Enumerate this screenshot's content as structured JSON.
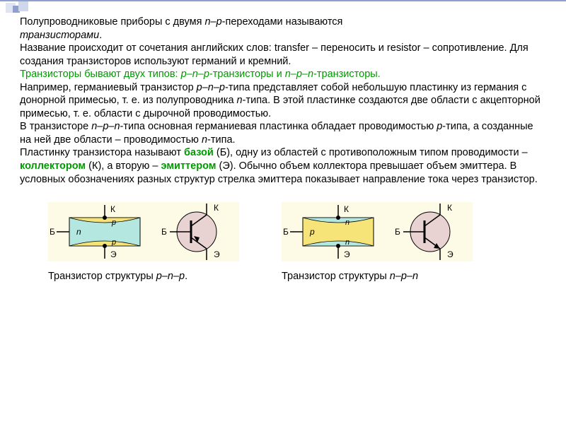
{
  "text": {
    "l1a": "Полупроводниковые приборы с двумя ",
    "l1b": "n–p",
    "l1c": "-переходами называются ",
    "l2a": "транзисторами",
    "l2b": ".",
    "l3": "Название происходит от сочетания английских слов: transfer – переносить и resistor – сопротивление. Для создания транзисторов используют германий и кремний.",
    "l4a": "Транзисторы бывают двух типов: ",
    "l4b": "p–n–p",
    "l4c": "-транзисторы и ",
    "l4d": "n–p–n",
    "l4e": "-транзисторы.",
    "l5a": "Например, германиевый транзистор ",
    "l5b": "p–n–p",
    "l5c": "-типа представляет собой небольшую пластинку из германия с донорной примесью, т. е. из полупроводника ",
    "l5d": "n",
    "l5e": "-типа. В этой пластинке создаются две области с акцепторной примесью, т. е. области с дырочной проводимостью.",
    "l6a": "В транзисторе ",
    "l6b": "n–p–n",
    "l6c": "-типа основная германиевая пластинка обладает проводимостью ",
    "l6d": "p",
    "l6e": "-типа, а созданные на ней две области – проводимостью ",
    "l6f": "n",
    "l6g": "-типа.",
    "l7a": "Пластинку транзистора называют ",
    "l7b": "базой",
    "l7c": " (Б), одну из областей с противоположным типом проводимости – ",
    "l7d": "коллектором",
    "l7e": " (К), а вторую – ",
    "l7f": "эмиттером",
    "l7g": " (Э). Обычно объем коллектора превышает объем эмиттера. В условных обозначениях разных структур стрелка эмиттера показывает направление тока через транзистор."
  },
  "captions": {
    "pnp_a": "Транзистор структуры ",
    "pnp_b": "p–n–p",
    "pnp_c": ".",
    "npn_a": "Транзистор структуры ",
    "npn_b": "n–p–n"
  },
  "fig": {
    "pnp": {
      "labels": {
        "B": "Б",
        "K": "К",
        "E": "Э",
        "outer": "n",
        "inner": "p"
      },
      "colors": {
        "bg": "#fdfbe6",
        "outer_fill": "#b3e7e0",
        "inner_fill": "#f7e478",
        "stroke": "#000",
        "symbol_bg": "#e8d2d2"
      },
      "arrow_in": true
    },
    "npn": {
      "labels": {
        "B": "Б",
        "K": "К",
        "E": "Э",
        "outer": "p",
        "inner": "n"
      },
      "colors": {
        "bg": "#fdfbe6",
        "outer_fill": "#f7e478",
        "inner_fill": "#b3e7e0",
        "stroke": "#000",
        "symbol_bg": "#e8d2d2"
      },
      "arrow_in": false
    }
  }
}
